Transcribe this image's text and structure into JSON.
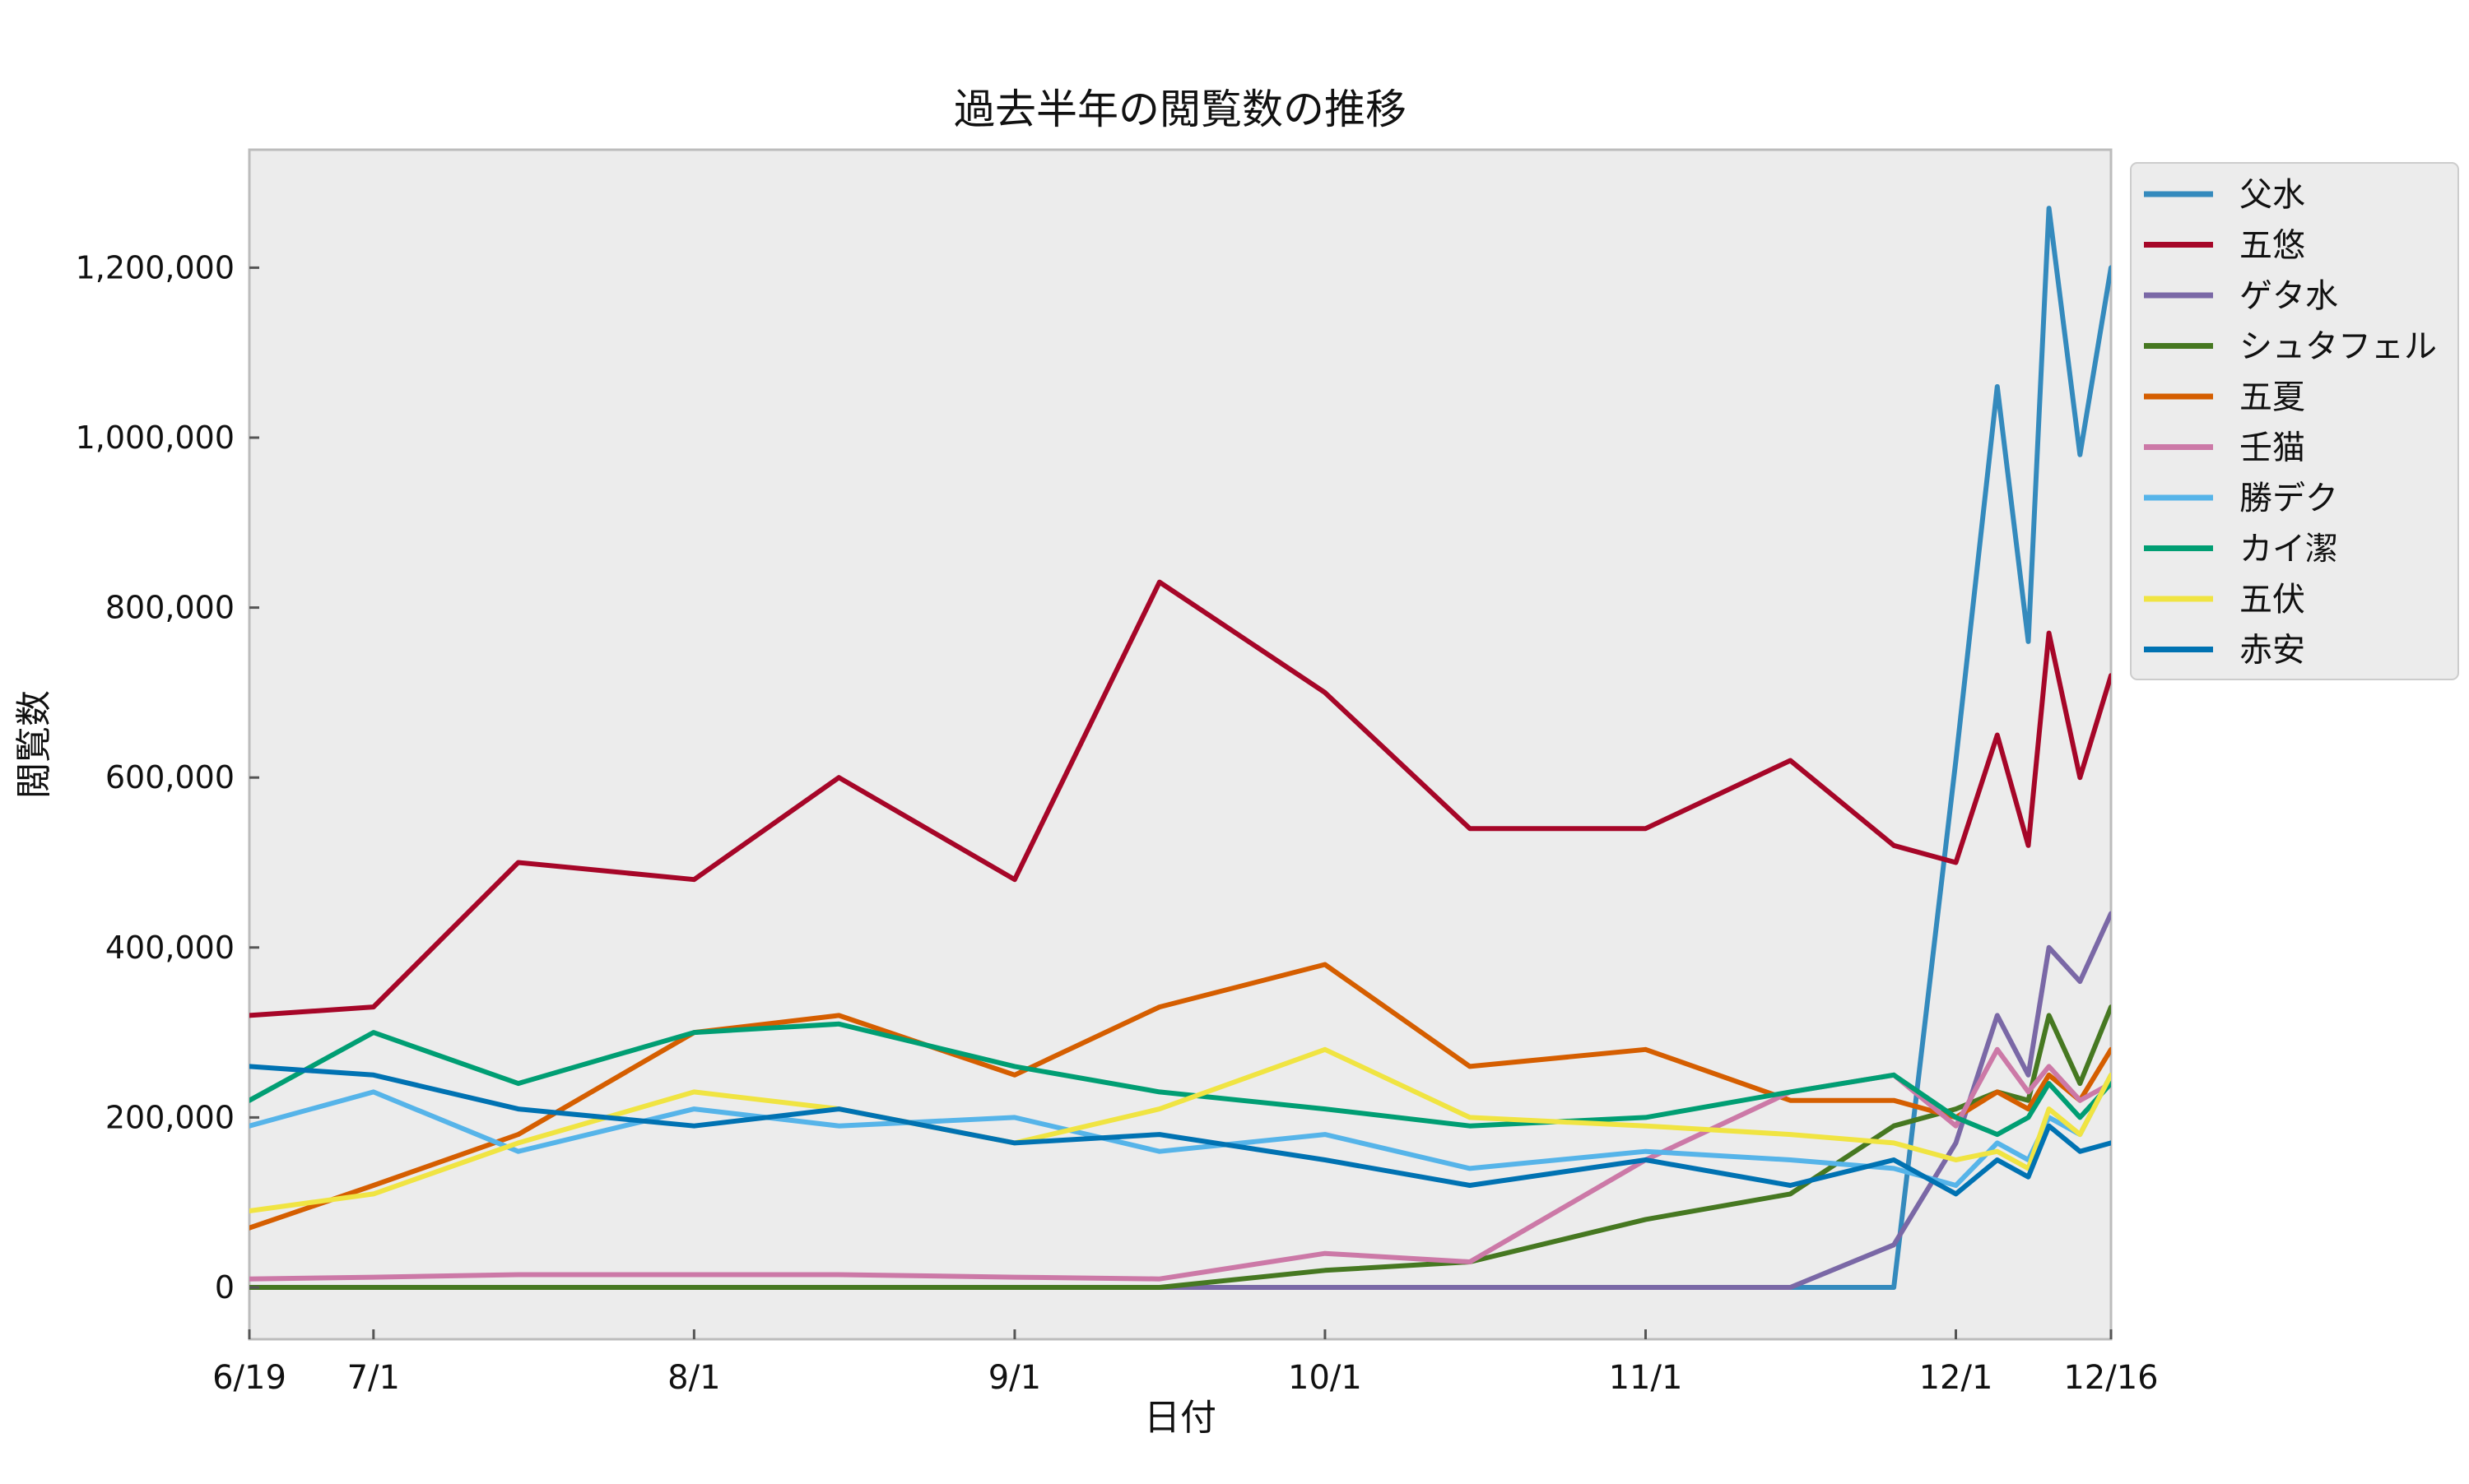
{
  "chart_data": {
    "type": "line",
    "title": "過去半年の閲覧数の推移",
    "xlabel": "日付",
    "ylabel": "閲覧数",
    "x_ticks": [
      "6/19",
      "7/1",
      "8/1",
      "9/1",
      "10/1",
      "11/1",
      "12/1",
      "12/16"
    ],
    "y_ticks": [
      "0",
      "200,000",
      "400,000",
      "600,000",
      "800,000",
      "1,000,000",
      "1,200,000"
    ],
    "ylim": [
      -60000,
      1340000
    ],
    "x_range": [
      "6/19",
      "12/16"
    ],
    "grid": false,
    "legend_position": "upper-right, outside plot",
    "background_color": "#ececec",
    "x": [
      "6/19",
      "7/1",
      "7/15",
      "8/1",
      "8/15",
      "9/1",
      "9/15",
      "10/1",
      "10/15",
      "11/1",
      "11/15",
      "11/25",
      "12/1",
      "12/5",
      "12/8",
      "12/10",
      "12/13",
      "12/16"
    ],
    "series": [
      {
        "name": "父水",
        "color": "#348abd",
        "values": [
          0,
          0,
          0,
          0,
          0,
          0,
          0,
          0,
          0,
          0,
          0,
          0,
          620000,
          1060000,
          760000,
          1270000,
          980000,
          1200000
        ]
      },
      {
        "name": "五悠",
        "color": "#a60628",
        "values": [
          320000,
          330000,
          500000,
          480000,
          600000,
          480000,
          830000,
          700000,
          540000,
          540000,
          620000,
          520000,
          500000,
          650000,
          520000,
          770000,
          600000,
          720000
        ]
      },
      {
        "name": "ゲタ水",
        "color": "#7a68a6",
        "values": [
          0,
          0,
          0,
          0,
          0,
          0,
          0,
          0,
          0,
          0,
          0,
          50000,
          170000,
          320000,
          250000,
          400000,
          360000,
          440000
        ]
      },
      {
        "name": "シュタフェル",
        "color": "#467821",
        "values": [
          0,
          0,
          0,
          0,
          0,
          0,
          0,
          20000,
          30000,
          80000,
          110000,
          190000,
          210000,
          230000,
          220000,
          320000,
          240000,
          330000
        ]
      },
      {
        "name": "五夏",
        "color": "#d55e00",
        "values": [
          70000,
          120000,
          180000,
          300000,
          320000,
          250000,
          330000,
          380000,
          260000,
          280000,
          220000,
          220000,
          200000,
          230000,
          210000,
          250000,
          220000,
          280000
        ]
      },
      {
        "name": "壬猫",
        "color": "#cc79a7",
        "values": [
          10000,
          12000,
          15000,
          15000,
          15000,
          12000,
          10000,
          40000,
          30000,
          150000,
          230000,
          250000,
          190000,
          280000,
          230000,
          260000,
          220000,
          240000
        ]
      },
      {
        "name": "勝デク",
        "color": "#56b4e9",
        "values": [
          190000,
          230000,
          160000,
          210000,
          190000,
          200000,
          160000,
          180000,
          140000,
          160000,
          150000,
          140000,
          120000,
          170000,
          150000,
          200000,
          180000,
          250000
        ]
      },
      {
        "name": "カイ潔",
        "color": "#009e73",
        "values": [
          220000,
          300000,
          240000,
          300000,
          310000,
          260000,
          230000,
          210000,
          190000,
          200000,
          230000,
          250000,
          200000,
          180000,
          200000,
          240000,
          200000,
          240000
        ]
      },
      {
        "name": "五伏",
        "color": "#f0e442",
        "values": [
          90000,
          110000,
          170000,
          230000,
          210000,
          170000,
          210000,
          280000,
          200000,
          190000,
          180000,
          170000,
          150000,
          160000,
          140000,
          210000,
          180000,
          250000
        ]
      },
      {
        "name": "赤安",
        "color": "#0072b2",
        "values": [
          260000,
          250000,
          210000,
          190000,
          210000,
          170000,
          180000,
          150000,
          120000,
          150000,
          120000,
          150000,
          110000,
          150000,
          130000,
          190000,
          160000,
          170000
        ]
      }
    ]
  }
}
